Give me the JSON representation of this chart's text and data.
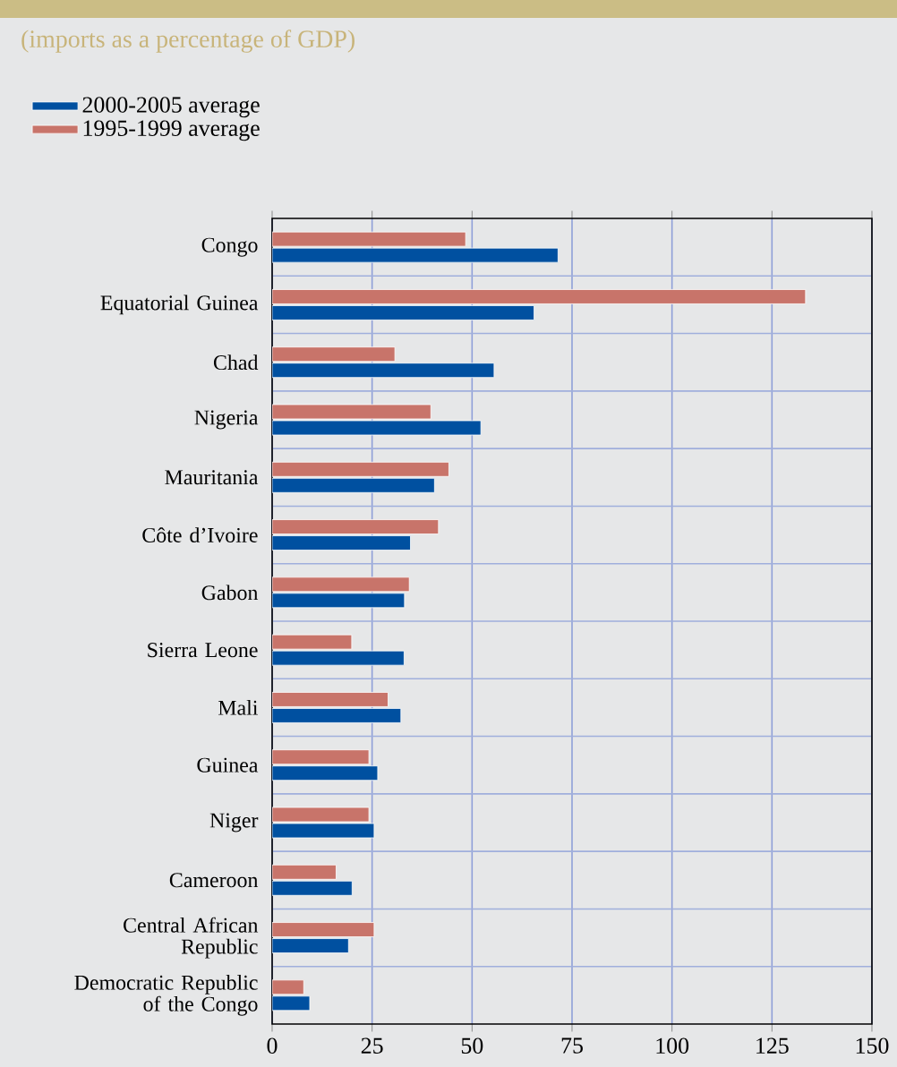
{
  "chart_data": {
    "type": "bar",
    "orientation": "horizontal",
    "title": "(imports as a percentage of GDP)",
    "categories": [
      "Congo",
      "Equatorial Guinea",
      "Chad",
      "Nigeria",
      "Mauritania",
      "Côte d’Ivoire",
      "Gabon",
      "Sierra Leone",
      "Mali",
      "Guinea",
      "Niger",
      "Cameroon",
      "Central African Republic",
      "Democratic Republic of the Congo"
    ],
    "series": [
      {
        "name": "2000-2005 average",
        "color": "#0050a0",
        "values": [
          71.5,
          65.5,
          55.5,
          52.2,
          40.6,
          34.6,
          33.1,
          33.0,
          32.2,
          26.4,
          25.5,
          20.0,
          19.1,
          9.4
        ]
      },
      {
        "name": "1995-1999 average",
        "color": "#c8746a",
        "values": [
          48.4,
          133.4,
          30.7,
          39.7,
          44.2,
          41.6,
          34.3,
          19.9,
          29.0,
          24.2,
          24.2,
          16.0,
          25.5,
          7.9
        ]
      }
    ],
    "xlim": [
      0,
      150
    ],
    "xticks": [
      0,
      25,
      50,
      75,
      100,
      125,
      150
    ],
    "grid": true,
    "legend": "top left"
  }
}
